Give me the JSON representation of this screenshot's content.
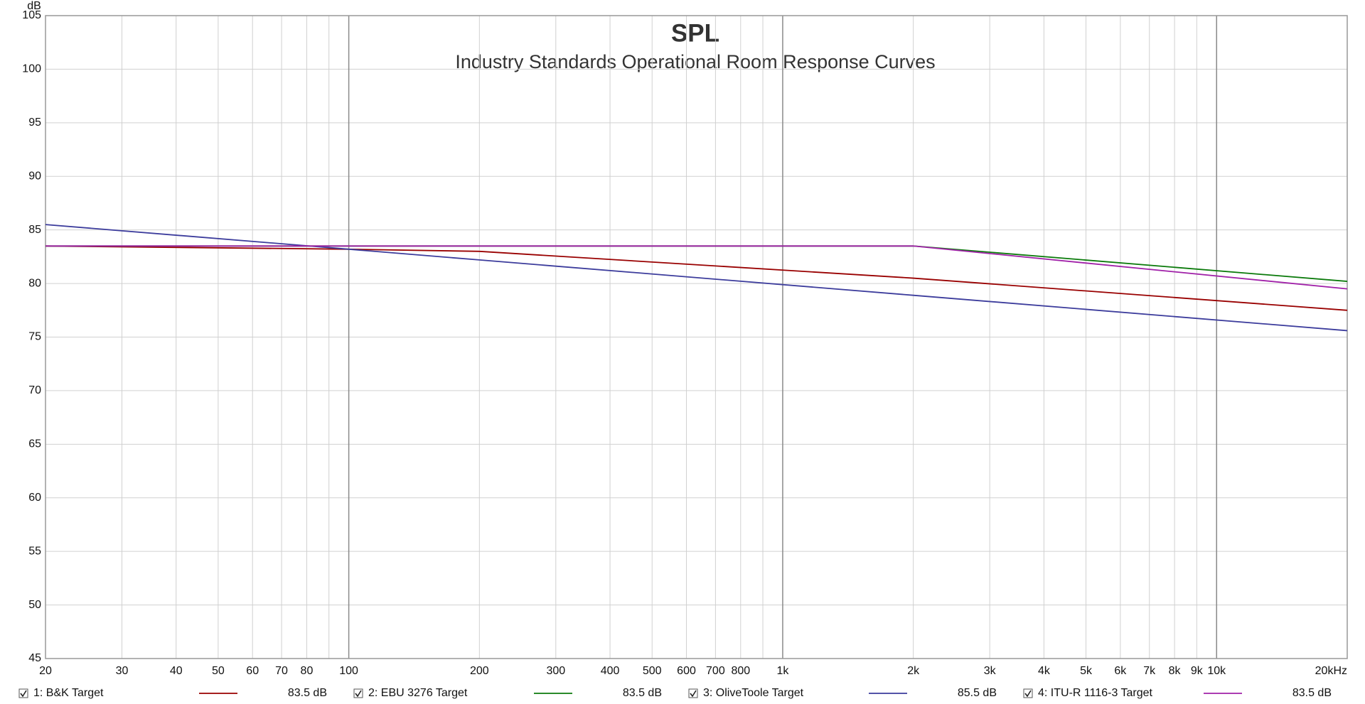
{
  "chart_data": {
    "type": "line",
    "title": "SPL",
    "subtitle": "Industry Standards Operational Room Response Curves",
    "y_label": "dB",
    "x_scale": "log",
    "grid": true,
    "x": [
      20,
      100,
      200,
      2000,
      20000
    ],
    "series": [
      {
        "name": "1: B&K Target",
        "color": "#990000",
        "level_label": "83.5 dB",
        "values": [
          83.5,
          83.2,
          83.0,
          80.5,
          77.5
        ]
      },
      {
        "name": "2: EBU 3276 Target",
        "color": "#0b7a0b",
        "level_label": "83.5 dB",
        "values": [
          83.5,
          83.5,
          83.5,
          83.5,
          80.2
        ]
      },
      {
        "name": "3: OliveToole Target",
        "color": "#3c3c9c",
        "level_label": "85.5 dB",
        "values": [
          85.5,
          83.2,
          82.2,
          78.9,
          75.6
        ]
      },
      {
        "name": "4: ITU-R 1116-3 Target",
        "color": "#a020a8",
        "level_label": "83.5 dB",
        "values": [
          83.5,
          83.5,
          83.5,
          83.5,
          79.5
        ]
      }
    ],
    "xlim": [
      20,
      20000
    ],
    "xticks": [
      20,
      30,
      40,
      50,
      60,
      70,
      80,
      100,
      200,
      300,
      400,
      500,
      600,
      700,
      800,
      {
        "value": 1000,
        "label": "1k"
      },
      {
        "value": 2000,
        "label": "2k"
      },
      {
        "value": 3000,
        "label": "3k"
      },
      {
        "value": 4000,
        "label": "4k"
      },
      {
        "value": 5000,
        "label": "5k"
      },
      {
        "value": 6000,
        "label": "6k"
      },
      {
        "value": 7000,
        "label": "7k"
      },
      {
        "value": 8000,
        "label": "8k"
      },
      {
        "value": 9000,
        "label": "9k"
      },
      {
        "value": 10000,
        "label": "10k"
      },
      {
        "value": 20000,
        "label": "20kHz"
      }
    ],
    "xgrid_minor": [
      90,
      900
    ],
    "ylim": [
      45,
      105
    ],
    "yticks": [
      45,
      50,
      55,
      60,
      65,
      70,
      75,
      80,
      85,
      90,
      95,
      100,
      105
    ]
  }
}
